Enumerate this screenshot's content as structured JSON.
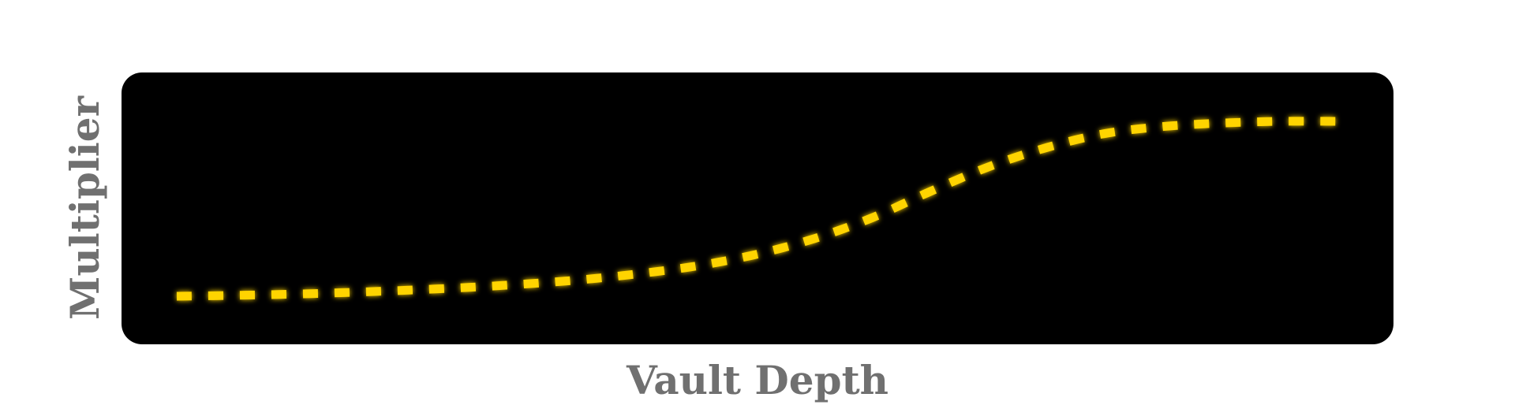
{
  "chart_data": {
    "type": "line",
    "title": "",
    "xlabel": "Vault Depth",
    "ylabel": "Multiplier",
    "grid": false,
    "legend": "none",
    "x_ticks_shown": false,
    "y_ticks_shown": false,
    "xlim": [
      0,
      1
    ],
    "ylim": [
      0,
      1
    ],
    "colors": {
      "plot_background": "#000000",
      "line": "#ffd400",
      "line_glow": "#ffe000",
      "axis_label": "#707070",
      "page_background": "#ffffff"
    },
    "line_style": "dashed",
    "series": [
      {
        "x": [
          0,
          0.05,
          0.1,
          0.15,
          0.2,
          0.25,
          0.3,
          0.35,
          0.4,
          0.45,
          0.5,
          0.55,
          0.6,
          0.65,
          0.7,
          0.75,
          0.8,
          0.85,
          0.9,
          0.95,
          1.0
        ],
        "y": [
          0,
          0.005,
          0.012,
          0.022,
          0.035,
          0.05,
          0.07,
          0.095,
          0.13,
          0.175,
          0.24,
          0.33,
          0.45,
          0.6,
          0.74,
          0.85,
          0.93,
          0.97,
          0.99,
          1.0,
          1.0
        ]
      }
    ]
  }
}
